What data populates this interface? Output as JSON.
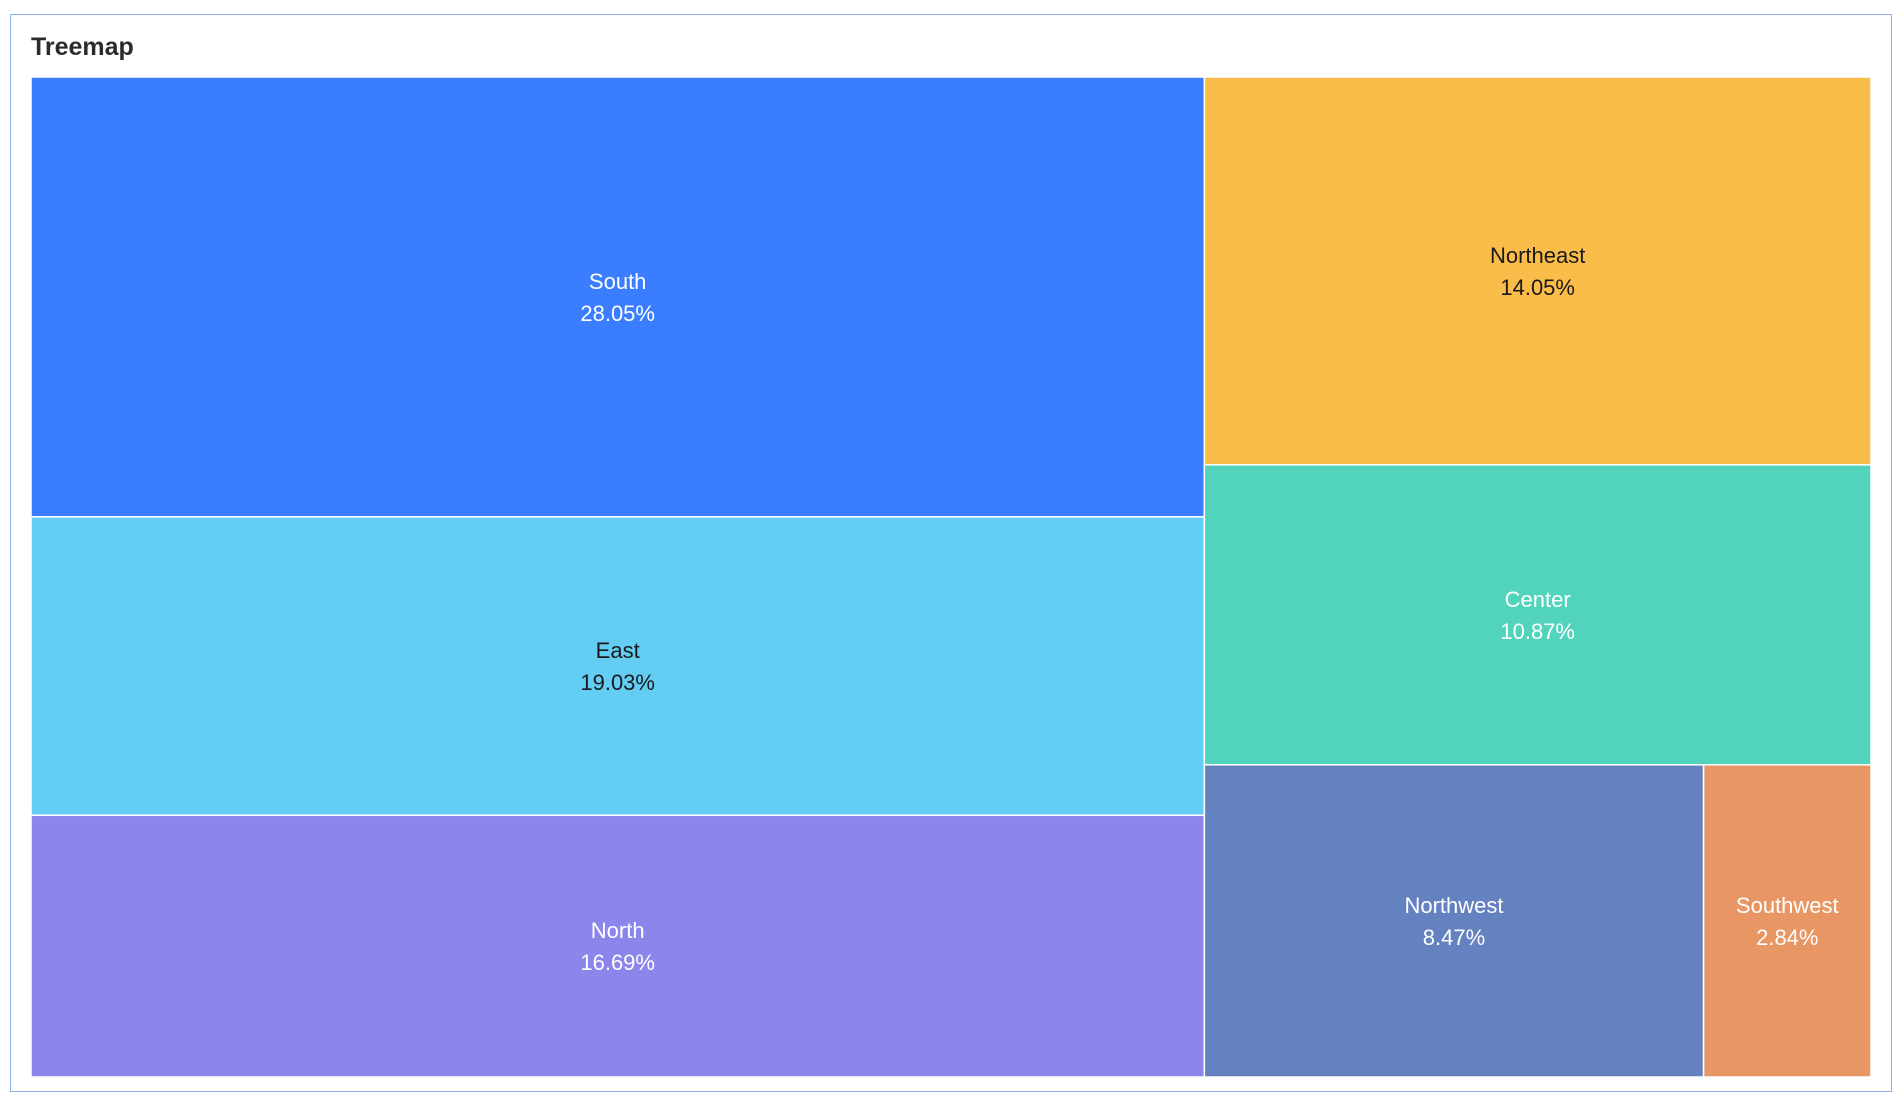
{
  "chart_data": {
    "type": "treemap",
    "title": "Treemap",
    "items": [
      {
        "name": "South",
        "value": 28.05,
        "label": "28.05%",
        "color": "#3a7eff",
        "text_color": "#ffffff"
      },
      {
        "name": "East",
        "value": 19.03,
        "label": "19.03%",
        "color": "#64cdf4",
        "text_color": "#1a1a1a"
      },
      {
        "name": "North",
        "value": 16.69,
        "label": "16.69%",
        "color": "#8c85eb",
        "text_color": "#ffffff"
      },
      {
        "name": "Northeast",
        "value": 14.05,
        "label": "14.05%",
        "color": "#fbbd4a",
        "text_color": "#1a1a1a"
      },
      {
        "name": "Center",
        "value": 10.87,
        "label": "10.87%",
        "color": "#52d4bc",
        "text_color": "#ffffff"
      },
      {
        "name": "Northwest",
        "value": 8.47,
        "label": "8.47%",
        "color": "#6582c0",
        "text_color": "#ffffff"
      },
      {
        "name": "Southwest",
        "value": 2.84,
        "label": "2.84%",
        "color": "#e89664",
        "text_color": "#ffffff"
      }
    ]
  }
}
